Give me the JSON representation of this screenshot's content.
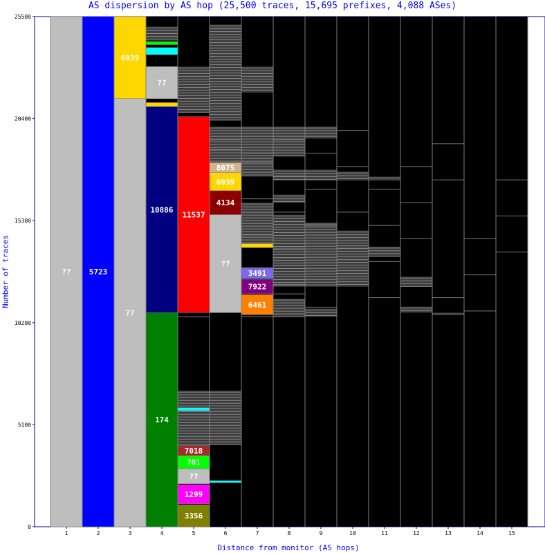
{
  "chart_data": {
    "type": "bar",
    "title": "AS dispersion by AS hop (25,500 traces, 15,695 prefixes, 4,088 ASes)",
    "xlabel": "Distance from monitor (AS hops)",
    "ylabel": "Number of traces",
    "ylim": [
      0,
      25500
    ],
    "y_ticks": [
      "0",
      "5100",
      "10200",
      "15300",
      "20400",
      "25500"
    ],
    "x": [
      "1",
      "2",
      "3",
      "4",
      "5",
      "6",
      "7",
      "8",
      "9",
      "10",
      "11",
      "12",
      "13",
      "14",
      "15"
    ],
    "stacks": [
      {
        "hop": "1",
        "segments": [
          {
            "label": "??",
            "start": 0,
            "end": 25500,
            "color": "#bebebe"
          }
        ]
      },
      {
        "hop": "2",
        "segments": [
          {
            "label": "5723",
            "start": 0,
            "end": 25500,
            "color": "#0000ff"
          }
        ]
      },
      {
        "hop": "3",
        "segments": [
          {
            "label": "??",
            "start": 0,
            "end": 21400,
            "color": "#bebebe"
          },
          {
            "label": "6939",
            "start": 21400,
            "end": 25500,
            "color": "#ffd700"
          }
        ]
      },
      {
        "hop": "4",
        "segments": [
          {
            "label": "174",
            "start": 0,
            "end": 10700,
            "color": "#008000"
          },
          {
            "label": "10886",
            "start": 10700,
            "end": 21000,
            "color": "#000080"
          },
          {
            "label": "",
            "start": 21000,
            "end": 21200,
            "color": "#ffd700"
          },
          {
            "label": "??",
            "start": 21400,
            "end": 23000,
            "color": "#bebebe"
          },
          {
            "label": "",
            "start": 23000,
            "end": 23600,
            "color": "#000000"
          },
          {
            "label": "",
            "start": 23600,
            "end": 23950,
            "color": "#00ffff"
          },
          {
            "label": "",
            "start": 24100,
            "end": 24250,
            "color": "#00ff00"
          }
        ]
      },
      {
        "hop": "5",
        "segments": [
          {
            "label": "3356",
            "start": 0,
            "end": 1100,
            "color": "#808000"
          },
          {
            "label": "1299",
            "start": 1150,
            "end": 2100,
            "color": "#ff00ff"
          },
          {
            "label": "??",
            "start": 2150,
            "end": 2900,
            "color": "#bebebe"
          },
          {
            "label": "701",
            "start": 2900,
            "end": 3550,
            "color": "#00ff00"
          },
          {
            "label": "7018",
            "start": 3550,
            "end": 4050,
            "color": "#a52a2a"
          },
          {
            "label": "",
            "start": 5800,
            "end": 5950,
            "color": "#00ffff"
          },
          {
            "label": "11537",
            "start": 10700,
            "end": 20500,
            "color": "#ff0000"
          }
        ]
      },
      {
        "hop": "6",
        "segments": [
          {
            "label": "",
            "start": 2200,
            "end": 2300,
            "color": "#00ffff"
          },
          {
            "label": "??",
            "start": 10700,
            "end": 15600,
            "color": "#bebebe"
          },
          {
            "label": "4134",
            "start": 15600,
            "end": 16800,
            "color": "#8b0000"
          },
          {
            "label": "6939",
            "start": 16800,
            "end": 17700,
            "color": "#ffd700"
          },
          {
            "label": "8075",
            "start": 17700,
            "end": 18200,
            "color": "#d2b48c"
          }
        ]
      },
      {
        "hop": "7",
        "segments": [
          {
            "label": "6461",
            "start": 10600,
            "end": 11600,
            "color": "#ff8000"
          },
          {
            "label": "7922",
            "start": 11650,
            "end": 12350,
            "color": "#800080"
          },
          {
            "label": "3491",
            "start": 12400,
            "end": 12950,
            "color": "#7b68ee"
          },
          {
            "label": "",
            "start": 13950,
            "end": 14150,
            "color": "#ffd700"
          }
        ]
      }
    ],
    "grey_regions": [
      {
        "hop": "4",
        "start": 24300,
        "end": 25000
      },
      {
        "hop": "5",
        "start": 4050,
        "end": 6800
      },
      {
        "hop": "5",
        "start": 20700,
        "end": 23000
      },
      {
        "hop": "6",
        "start": 4100,
        "end": 6800
      },
      {
        "hop": "6",
        "start": 18200,
        "end": 20000
      },
      {
        "hop": "6",
        "start": 20300,
        "end": 25100
      },
      {
        "hop": "7",
        "start": 14150,
        "end": 16200
      },
      {
        "hop": "7",
        "start": 17500,
        "end": 20000
      },
      {
        "hop": "7",
        "start": 21700,
        "end": 23000
      },
      {
        "hop": "8",
        "start": 16200,
        "end": 16600
      },
      {
        "hop": "8",
        "start": 10500,
        "end": 11400
      },
      {
        "hop": "8",
        "start": 12000,
        "end": 15600
      },
      {
        "hop": "8",
        "start": 17300,
        "end": 17850
      },
      {
        "hop": "8",
        "start": 18500,
        "end": 20000
      },
      {
        "hop": "9",
        "start": 12000,
        "end": 15200
      },
      {
        "hop": "9",
        "start": 17300,
        "end": 17850
      },
      {
        "hop": "9",
        "start": 19400,
        "end": 20000
      },
      {
        "hop": "9",
        "start": 10500,
        "end": 10900
      },
      {
        "hop": "10",
        "start": 12000,
        "end": 14800
      },
      {
        "hop": "10",
        "start": 17300,
        "end": 17750
      },
      {
        "hop": "11",
        "start": 13500,
        "end": 14000
      },
      {
        "hop": "11",
        "start": 17300,
        "end": 17500
      },
      {
        "hop": "12",
        "start": 12000,
        "end": 12500
      },
      {
        "hop": "12",
        "start": 10700,
        "end": 11000
      },
      {
        "hop": "13",
        "start": 10600,
        "end": 10700
      }
    ],
    "grid": true,
    "legend": "none"
  }
}
